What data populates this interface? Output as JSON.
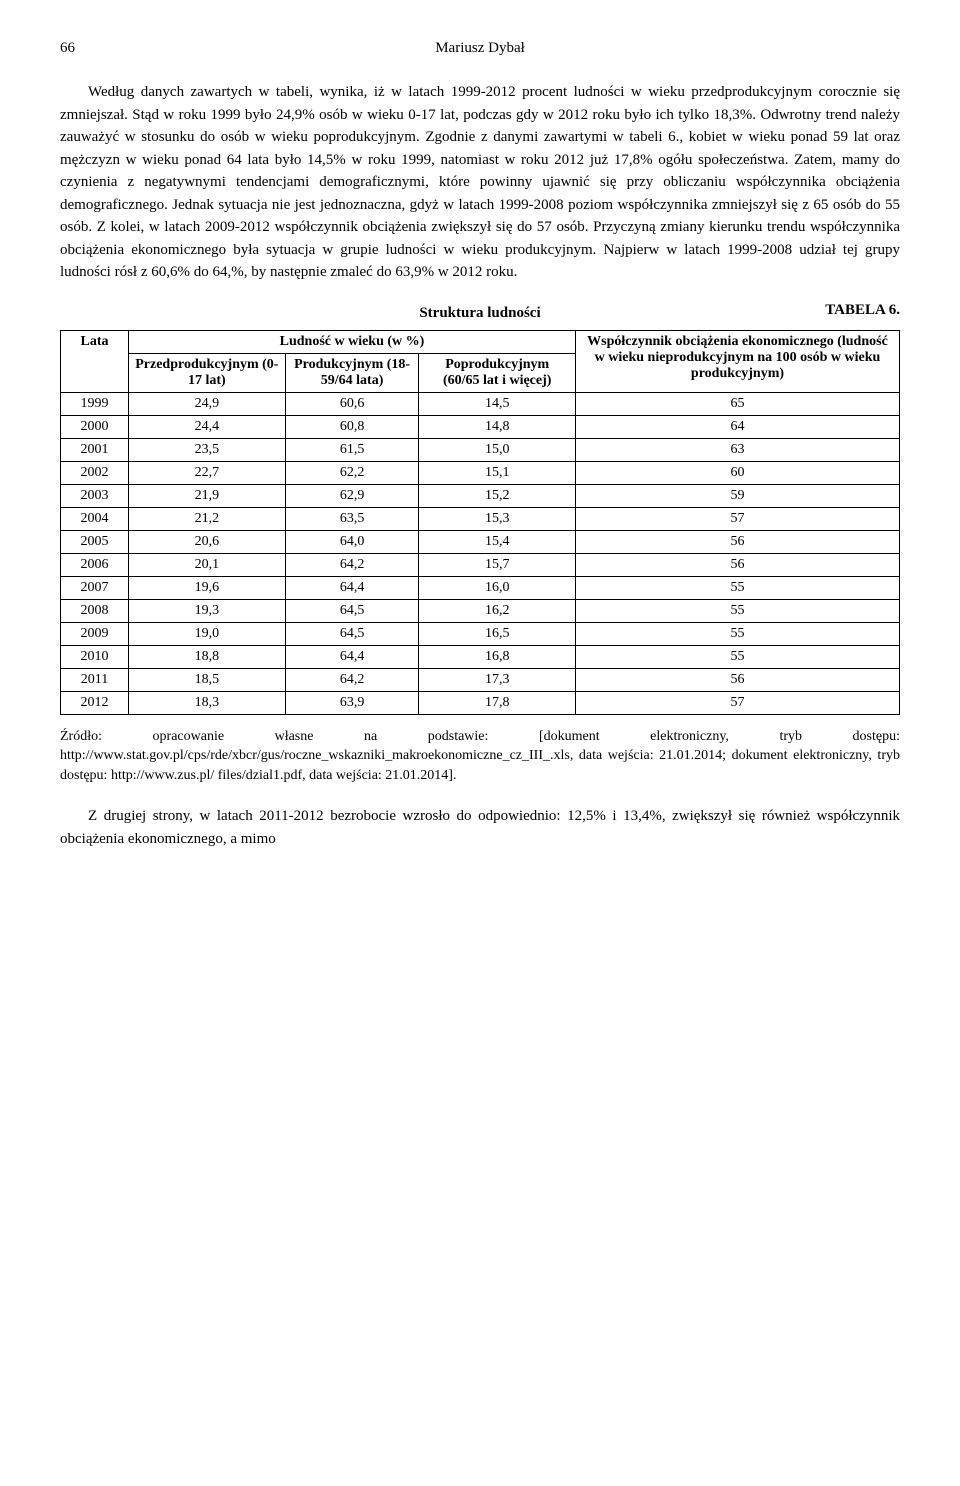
{
  "header": {
    "page_number": "66",
    "author": "Mariusz Dybał"
  },
  "paragraph_main": "Według danych zawartych w tabeli, wynika, iż w latach 1999-2012 procent ludności w wieku przedprodukcyjnym corocznie się zmniejszał. Stąd w roku 1999 było 24,9% osób w wieku 0-17 lat, podczas gdy w 2012 roku było ich tylko 18,3%. Odwrotny trend należy zauważyć w stosunku do osób w wieku poprodukcyjnym. Zgodnie z danymi zawartymi w tabeli 6., kobiet w wieku ponad 59 lat oraz mężczyzn w wieku ponad 64 lata było 14,5% w roku 1999, natomiast w roku 2012 już 17,8% ogółu społeczeństwa. Zatem, mamy do czynienia z negatywnymi tendencjami demograficznymi, które powinny ujawnić się przy obliczaniu współczynnika obciążenia demograficznego. Jednak sytuacja nie jest jednoznaczna, gdyż w latach 1999-2008 poziom współczynnika zmniejszył się z 65 osób do 55 osób. Z kolei, w latach 2009-2012 współczynnik obciążenia zwiększył się do 57 osób. Przyczyną zmiany kierunku trendu współczynnika obciążenia ekonomicznego była sytuacja w grupie ludności w wieku produkcyjnym. Najpierw w latach 1999-2008 udział tej grupy ludności rósł z 60,6% do 64,%, by następnie zmaleć do 63,9% w 2012 roku.",
  "table": {
    "label": "TABELA 6.",
    "title": "Struktura ludności",
    "col_lata": "Lata",
    "col_group_ludnosc": "Ludność w wieku (w %)",
    "col_przedprod": "Przedprodukcyjnym (0-17 lat)",
    "col_prod": "Produkcyjnym (18-59/64 lata)",
    "col_poprod": "Poprodukcyjnym (60/65 lat i więcej)",
    "col_wspol": "Współczynnik obciążenia ekonomicznego (ludność w wieku nieprodukcyjnym na 100 osób w wieku produkcyjnym)",
    "rows": [
      {
        "year": "1999",
        "pre": "24,9",
        "prod": "60,6",
        "post": "14,5",
        "coef": "65"
      },
      {
        "year": "2000",
        "pre": "24,4",
        "prod": "60,8",
        "post": "14,8",
        "coef": "64"
      },
      {
        "year": "2001",
        "pre": "23,5",
        "prod": "61,5",
        "post": "15,0",
        "coef": "63"
      },
      {
        "year": "2002",
        "pre": "22,7",
        "prod": "62,2",
        "post": "15,1",
        "coef": "60"
      },
      {
        "year": "2003",
        "pre": "21,9",
        "prod": "62,9",
        "post": "15,2",
        "coef": "59"
      },
      {
        "year": "2004",
        "pre": "21,2",
        "prod": "63,5",
        "post": "15,3",
        "coef": "57"
      },
      {
        "year": "2005",
        "pre": "20,6",
        "prod": "64,0",
        "post": "15,4",
        "coef": "56"
      },
      {
        "year": "2006",
        "pre": "20,1",
        "prod": "64,2",
        "post": "15,7",
        "coef": "56"
      },
      {
        "year": "2007",
        "pre": "19,6",
        "prod": "64,4",
        "post": "16,0",
        "coef": "55"
      },
      {
        "year": "2008",
        "pre": "19,3",
        "prod": "64,5",
        "post": "16,2",
        "coef": "55"
      },
      {
        "year": "2009",
        "pre": "19,0",
        "prod": "64,5",
        "post": "16,5",
        "coef": "55"
      },
      {
        "year": "2010",
        "pre": "18,8",
        "prod": "64,4",
        "post": "16,8",
        "coef": "55"
      },
      {
        "year": "2011",
        "pre": "18,5",
        "prod": "64,2",
        "post": "17,3",
        "coef": "56"
      },
      {
        "year": "2012",
        "pre": "18,3",
        "prod": "63,9",
        "post": "17,8",
        "coef": "57"
      }
    ]
  },
  "source_note": "Źródło: opracowanie własne na podstawie: [dokument elektroniczny, tryb dostępu: http://www.stat.gov.pl/cps/rde/xbcr/gus/roczne_wskazniki_makroekonomiczne_cz_III_.xls, data wejścia: 21.01.2014; dokument elektroniczny, tryb dostępu: http://www.zus.pl/ files/dzial1.pdf, data wejścia: 21.01.2014].",
  "paragraph_footer": "Z drugiej strony, w latach 2011-2012 bezrobocie wzrosło do odpowiednio: 12,5% i 13,4%, zwiększył się również współczynnik obciążenia ekonomicznego, a mimo"
}
